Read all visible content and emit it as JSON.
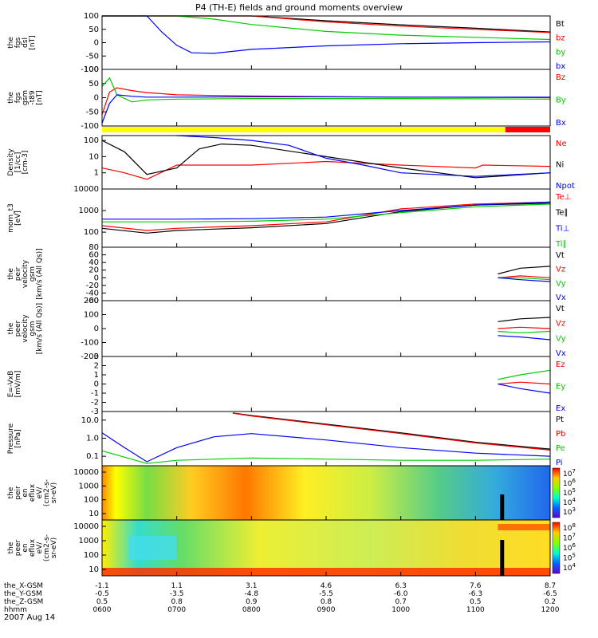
{
  "title": "P4 (TH-E) fields and ground moments overview",
  "date": "2007 Aug 14",
  "colors": {
    "black": "#000000",
    "red": "#ff0000",
    "green": "#00cc00",
    "blue": "#0000ff",
    "yellow": "#ffff00"
  },
  "chart_data": [
    {
      "type": "line",
      "panel": "fgs_dsl",
      "ylabel": [
        "the",
        "fgs",
        "dsl",
        "[nT]"
      ],
      "ylim": [
        -100,
        100
      ],
      "yticks": [
        "100",
        "50",
        "0",
        "-50",
        "-100"
      ],
      "series": [
        {
          "name": "Bt",
          "color": "black",
          "x": [
            6.0,
            6.6,
            7.0,
            7.5,
            8.0,
            9.0,
            10.0,
            11.0,
            12.0
          ],
          "y": [
            100,
            100,
            100,
            100,
            100,
            82,
            67,
            54,
            40
          ]
        },
        {
          "name": "bz",
          "color": "red",
          "x": [
            6.0,
            6.6,
            7.0,
            7.5,
            8.0,
            9.0,
            10.0,
            11.0,
            12.0
          ],
          "y": [
            100,
            100,
            100,
            100,
            100,
            78,
            62,
            50,
            38
          ]
        },
        {
          "name": "by",
          "color": "green",
          "x": [
            6.0,
            6.6,
            7.0,
            7.5,
            8.0,
            9.0,
            10.0,
            11.0,
            12.0
          ],
          "y": [
            100,
            100,
            100,
            88,
            68,
            42,
            28,
            20,
            12
          ]
        },
        {
          "name": "bx",
          "color": "blue",
          "x": [
            6.0,
            6.6,
            6.8,
            7.0,
            7.2,
            7.5,
            8.0,
            9.0,
            10.0,
            11.0,
            12.0
          ],
          "y": [
            100,
            100,
            40,
            -10,
            -38,
            -40,
            -25,
            -12,
            -4,
            0,
            3
          ]
        }
      ]
    },
    {
      "type": "line",
      "panel": "fgs_gsm",
      "ylabel": [
        "the",
        "fgs",
        "gsm",
        "-t89",
        "[nT]"
      ],
      "ylim": [
        -100,
        100
      ],
      "yticks": [
        "100",
        "50",
        "0",
        "-50",
        "-100"
      ],
      "series": [
        {
          "name": "Bz",
          "color": "red",
          "x": [
            6.0,
            6.1,
            6.2,
            6.4,
            6.6,
            7.0,
            8.0,
            9.0,
            10.0,
            11.0,
            12.0
          ],
          "y": [
            -60,
            20,
            35,
            25,
            18,
            10,
            6,
            4,
            2,
            1,
            0
          ]
        },
        {
          "name": "By",
          "color": "green",
          "x": [
            6.0,
            6.1,
            6.2,
            6.4,
            6.6,
            7.0,
            8.0,
            9.0,
            10.0,
            11.0,
            12.0
          ],
          "y": [
            40,
            70,
            10,
            -15,
            -8,
            -5,
            -3,
            -3,
            -3,
            -4,
            -5
          ]
        },
        {
          "name": "Bx",
          "color": "blue",
          "x": [
            6.0,
            6.1,
            6.2,
            6.4,
            6.6,
            7.0,
            8.0,
            9.0,
            10.0,
            11.0,
            12.0
          ],
          "y": [
            -90,
            -20,
            10,
            5,
            2,
            2,
            3,
            3,
            2,
            2,
            2
          ]
        }
      ]
    },
    {
      "type": "line",
      "panel": "density",
      "ylabel": [
        "Density",
        "[1/cc]",
        "[cm-3]"
      ],
      "yscale": "log",
      "ylim": [
        0.1,
        200
      ],
      "yticks": [
        "100",
        "10",
        "1"
      ],
      "series": [
        {
          "name": "Ne",
          "color": "red",
          "x": [
            6.0,
            6.3,
            6.6,
            7.0,
            8.0,
            9.0,
            10.0,
            11.0,
            11.1,
            12.0
          ],
          "y": [
            2,
            1,
            0.4,
            3,
            3,
            5,
            3,
            2,
            3,
            2.5
          ]
        },
        {
          "name": "Ni",
          "color": "black",
          "x": [
            6.0,
            6.3,
            6.6,
            7.0,
            7.3,
            7.6,
            8.0,
            9.0,
            10.0,
            11.0,
            12.0
          ],
          "y": [
            100,
            20,
            0.8,
            2,
            30,
            60,
            50,
            10,
            2,
            0.5,
            1
          ]
        },
        {
          "name": "Npot",
          "color": "blue",
          "x": [
            7.0,
            7.5,
            8.0,
            8.5,
            9.0,
            9.5,
            10.0,
            11.0,
            12.0
          ],
          "y": [
            200,
            150,
            100,
            50,
            8,
            3,
            1,
            0.6,
            1
          ]
        }
      ]
    },
    {
      "type": "line",
      "panel": "temperature",
      "ylabel": [
        "mom_t3",
        "[eV]"
      ],
      "yscale": "log",
      "ylim": [
        20,
        10000
      ],
      "yticks": [
        "10000",
        "1000",
        "100"
      ],
      "series": [
        {
          "name": "Te⊥",
          "color": "red",
          "x": [
            6.0,
            6.6,
            7.0,
            8.0,
            9.0,
            10.0,
            11.0,
            12.0
          ],
          "y": [
            200,
            120,
            150,
            200,
            300,
            1200,
            2000,
            2500
          ]
        },
        {
          "name": "Te∥",
          "color": "black",
          "x": [
            6.0,
            6.6,
            7.0,
            8.0,
            9.0,
            10.0,
            11.0,
            12.0
          ],
          "y": [
            150,
            90,
            120,
            160,
            250,
            900,
            1800,
            2200
          ]
        },
        {
          "name": "Ti⊥",
          "color": "blue",
          "x": [
            6.0,
            7.0,
            8.0,
            9.0,
            10.0,
            11.0,
            12.0
          ],
          "y": [
            400,
            400,
            420,
            500,
            1000,
            1800,
            2500
          ]
        },
        {
          "name": "Ti∥",
          "color": "green",
          "x": [
            6.0,
            7.0,
            8.0,
            9.0,
            10.0,
            11.0,
            12.0
          ],
          "y": [
            300,
            300,
            320,
            400,
            800,
            1500,
            2000
          ]
        }
      ]
    },
    {
      "type": "line",
      "panel": "peir_velocity",
      "ylabel": [
        "the",
        "peir",
        "velocity",
        "gsm",
        "[km/s (All Qs)]"
      ],
      "ylim": [
        -60,
        80
      ],
      "yticks": [
        "80",
        "60",
        "40",
        "20",
        "0",
        "-20",
        "-40",
        "-60"
      ],
      "series": [
        {
          "name": "Vt",
          "color": "black",
          "x": [
            11.3,
            11.6,
            12.0
          ],
          "y": [
            10,
            25,
            30
          ]
        },
        {
          "name": "Vz",
          "color": "red",
          "x": [
            11.3,
            11.6,
            12.0
          ],
          "y": [
            0,
            5,
            0
          ]
        },
        {
          "name": "Vy",
          "color": "green",
          "x": [
            11.3,
            11.6,
            12.0
          ],
          "y": [
            0,
            0,
            -5
          ]
        },
        {
          "name": "Vx",
          "color": "blue",
          "x": [
            11.3,
            11.6,
            12.0
          ],
          "y": [
            0,
            -5,
            -10
          ]
        }
      ]
    },
    {
      "type": "line",
      "panel": "peer_velocity",
      "ylabel": [
        "the",
        "peer",
        "velocity",
        "gsm",
        "[km/s (All Qs)]"
      ],
      "ylim": [
        -200,
        200
      ],
      "yticks": [
        "200",
        "100",
        "0",
        "-100",
        "-200"
      ],
      "series": [
        {
          "name": "Vt",
          "color": "black",
          "x": [
            11.3,
            11.6,
            12.0
          ],
          "y": [
            50,
            70,
            80
          ]
        },
        {
          "name": "Vz",
          "color": "red",
          "x": [
            11.3,
            11.6,
            12.0
          ],
          "y": [
            0,
            10,
            0
          ]
        },
        {
          "name": "Vy",
          "color": "green",
          "x": [
            11.3,
            11.6,
            12.0
          ],
          "y": [
            -20,
            -30,
            -20
          ]
        },
        {
          "name": "Vx",
          "color": "blue",
          "x": [
            11.3,
            11.6,
            12.0
          ],
          "y": [
            -50,
            -60,
            -80
          ]
        }
      ]
    },
    {
      "type": "line",
      "panel": "efield",
      "ylabel": [
        "E=-VxB",
        "[mV/m]"
      ],
      "ylim": [
        -3,
        3
      ],
      "yticks": [
        "3",
        "2",
        "1",
        "0",
        "-1",
        "-2",
        "-3"
      ],
      "series": [
        {
          "name": "Ez",
          "color": "red",
          "x": [
            11.3,
            11.6,
            12.0
          ],
          "y": [
            0,
            0.2,
            0
          ]
        },
        {
          "name": "Ey",
          "color": "green",
          "x": [
            11.3,
            11.6,
            12.0
          ],
          "y": [
            0.5,
            1,
            1.5
          ]
        },
        {
          "name": "Ex",
          "color": "blue",
          "x": [
            11.3,
            11.6,
            12.0
          ],
          "y": [
            0,
            -0.5,
            -1
          ]
        }
      ]
    },
    {
      "type": "line",
      "panel": "pressure",
      "ylabel": [
        "Pressure",
        "[nPa]"
      ],
      "yscale": "log",
      "ylim": [
        0.03,
        30
      ],
      "yticks": [
        "10.0",
        "1.0",
        "0.1"
      ],
      "series": [
        {
          "name": "Pt",
          "color": "black",
          "x": [
            7.75,
            8.0,
            9.0,
            10.0,
            11.0,
            12.0
          ],
          "y": [
            25,
            18,
            6,
            2,
            0.6,
            0.25
          ]
        },
        {
          "name": "Pb",
          "color": "red",
          "x": [
            7.75,
            8.0,
            9.0,
            10.0,
            11.0,
            12.0
          ],
          "y": [
            24,
            17,
            5.5,
            1.8,
            0.55,
            0.22
          ]
        },
        {
          "name": "Pe",
          "color": "green",
          "x": [
            6.0,
            6.6,
            7.0,
            8.0,
            9.0,
            10.0,
            11.0,
            12.0
          ],
          "y": [
            0.2,
            0.04,
            0.06,
            0.08,
            0.07,
            0.06,
            0.06,
            0.07
          ]
        },
        {
          "name": "Pi",
          "color": "blue",
          "x": [
            6.0,
            6.3,
            6.6,
            7.0,
            7.5,
            8.0,
            9.0,
            10.0,
            11.0,
            12.0
          ],
          "y": [
            2,
            0.3,
            0.05,
            0.3,
            1.2,
            1.8,
            0.8,
            0.3,
            0.15,
            0.1
          ]
        }
      ]
    },
    {
      "type": "heatmap",
      "panel": "peir_en_eflux",
      "ylabel": [
        "the",
        "peir",
        "en",
        "eflux",
        "eV/",
        "(cm2-s-",
        "sr-eV)"
      ],
      "yscale": "log",
      "yticks": [
        "10000",
        "1000",
        "100",
        "10"
      ],
      "colorbar": [
        "10^7",
        "10^6",
        "10^5",
        "10^4",
        "10^3"
      ]
    },
    {
      "type": "heatmap",
      "panel": "peer_en_eflux",
      "ylabel": [
        "the",
        "peer",
        "en",
        "eflux",
        "eV/",
        "(cm2-s-",
        "sr-eV)"
      ],
      "yscale": "log",
      "yticks": [
        "10000",
        "1000",
        "100",
        "10"
      ],
      "colorbar": [
        "10^8",
        "10^7",
        "10^6",
        "10^5",
        "10^4"
      ]
    }
  ],
  "xaxis": {
    "rows": [
      {
        "label": "the_X-GSM",
        "values": [
          "-1.1",
          "1.1",
          "3.1",
          "4.6",
          "6.3",
          "7.6",
          "8.7"
        ]
      },
      {
        "label": "the_Y-GSM",
        "values": [
          "-0.5",
          "-3.5",
          "-4.8",
          "-5.5",
          "-6.0",
          "-6.3",
          "-6.5"
        ]
      },
      {
        "label": "the_Z-GSM",
        "values": [
          "0.5",
          "0.8",
          "0.9",
          "0.8",
          "0.7",
          "0.5",
          "0.2"
        ]
      },
      {
        "label": "hhmm",
        "values": [
          "0600",
          "0700",
          "0800",
          "0900",
          "1000",
          "1100",
          "1200"
        ]
      }
    ]
  }
}
